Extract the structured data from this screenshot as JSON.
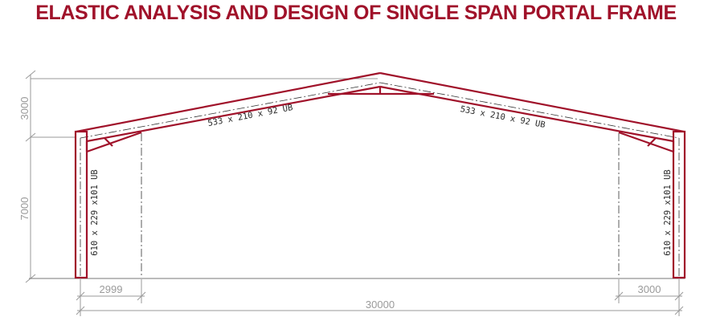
{
  "title": "ELASTIC ANALYSIS AND DESIGN OF SINGLE SPAN PORTAL FRAME",
  "dimensions": {
    "rise": "3000",
    "eaves_height": "7000",
    "left_haunch": "2999",
    "right_haunch": "3000",
    "span": "30000"
  },
  "members": {
    "rafter_left": "533 x 210 x 92 UB",
    "rafter_right": "533 x 210 x 92 UB",
    "column_left": "610 x 229 x101 UB",
    "column_right": "610 x 229 x101 UB"
  },
  "colors": {
    "member": "#a0122a",
    "dimension": "#9a9a9a",
    "centerline": "#333333"
  }
}
